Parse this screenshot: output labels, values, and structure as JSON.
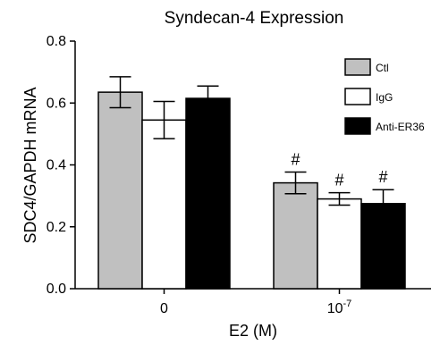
{
  "chart_data": {
    "type": "bar",
    "title": "Syndecan-4 Expression",
    "ylabel": "SDC4/GAPDH mRNA",
    "xlabel": "E2 (M)",
    "ylim": [
      0,
      0.8
    ],
    "yticks": [
      "0.0",
      "0.2",
      "0.4",
      "0.6",
      "0.8"
    ],
    "categories": [
      {
        "base": "0",
        "sup": ""
      },
      {
        "base": "10",
        "sup": "-7"
      }
    ],
    "series": [
      {
        "name": "Ctl",
        "color": "#c0c0c0",
        "values": [
          0.635,
          0.342
        ],
        "errors": [
          0.05,
          0.035
        ]
      },
      {
        "name": "IgG",
        "color": "#ffffff",
        "values": [
          0.545,
          0.29
        ],
        "errors": [
          0.06,
          0.02
        ]
      },
      {
        "name": "Anti-ER36",
        "color": "#000000",
        "values": [
          0.615,
          0.275
        ],
        "errors": [
          0.04,
          0.045
        ]
      }
    ],
    "annotations": [
      {
        "text": "#",
        "category": 1,
        "series": 0
      },
      {
        "text": "#",
        "category": 1,
        "series": 1
      },
      {
        "text": "#",
        "category": 1,
        "series": 2
      }
    ],
    "legend_position": "top-right",
    "grid": false
  }
}
